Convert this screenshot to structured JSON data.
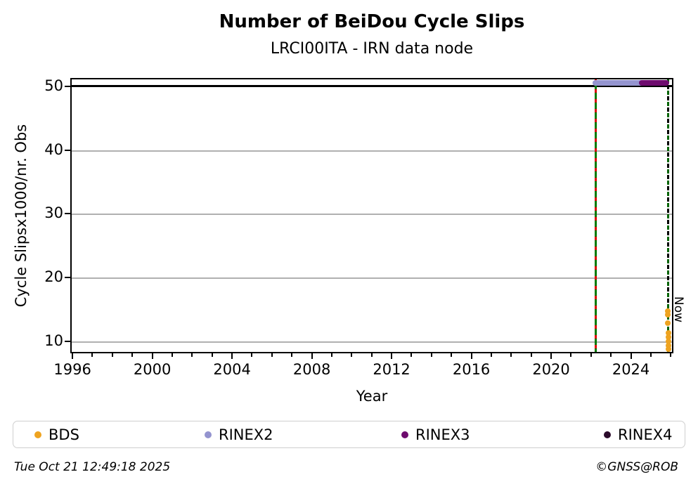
{
  "chart_data": {
    "type": "scatter",
    "title": "Number of BeiDou Cycle Slips",
    "subtitle": "LRCI00ITA - IRN data node",
    "xlabel": "Year",
    "ylabel": "Cycle Slipsx1000/nr. Obs",
    "xlim": [
      1995.89,
      2026.13
    ],
    "ylim": [
      8.1,
      51.3
    ],
    "xticks": [
      1996,
      2000,
      2004,
      2008,
      2012,
      2016,
      2020,
      2024
    ],
    "x_minor_step": 1,
    "yticks": [
      10,
      20,
      30,
      40,
      50
    ],
    "grid": true,
    "grid_color": "#b0b0b0",
    "cap_line_y": 50,
    "legend_position": "bottom",
    "series": [
      {
        "name": "BDS",
        "color": "#EEA320",
        "points": [
          {
            "x": 2025.79,
            "y": 14.9
          },
          {
            "x": 2025.79,
            "y": 14.4
          },
          {
            "x": 2025.79,
            "y": 13.1
          },
          {
            "x": 2025.8,
            "y": 11.5
          },
          {
            "x": 2025.8,
            "y": 10.9
          },
          {
            "x": 2025.8,
            "y": 10.2
          },
          {
            "x": 2025.8,
            "y": 9.5
          },
          {
            "x": 2025.8,
            "y": 9.0
          }
        ],
        "segments": []
      },
      {
        "name": "RINEX2",
        "color": "#9494CF",
        "points": [],
        "segments": [
          {
            "x1": 2022.02,
            "x2": 2024.6,
            "y": 50.8
          }
        ]
      },
      {
        "name": "RINEX3",
        "color": "#6E0B6E",
        "points": [],
        "segments": [
          {
            "x1": 2024.32,
            "x2": 2025.86,
            "y": 50.8
          }
        ]
      },
      {
        "name": "RINEX4",
        "color": "#2B0B2B",
        "points": [],
        "segments": []
      }
    ],
    "event_lines": [
      {
        "x": 2022.15,
        "style": "solid-green-red-dashed",
        "label": ""
      },
      {
        "x": 2025.8,
        "style": "dashed-green-black",
        "label": "Now"
      }
    ]
  },
  "footer": {
    "timestamp": "Tue Oct 21 12:49:18 2025",
    "copyright": "©GNSS@ROB"
  }
}
